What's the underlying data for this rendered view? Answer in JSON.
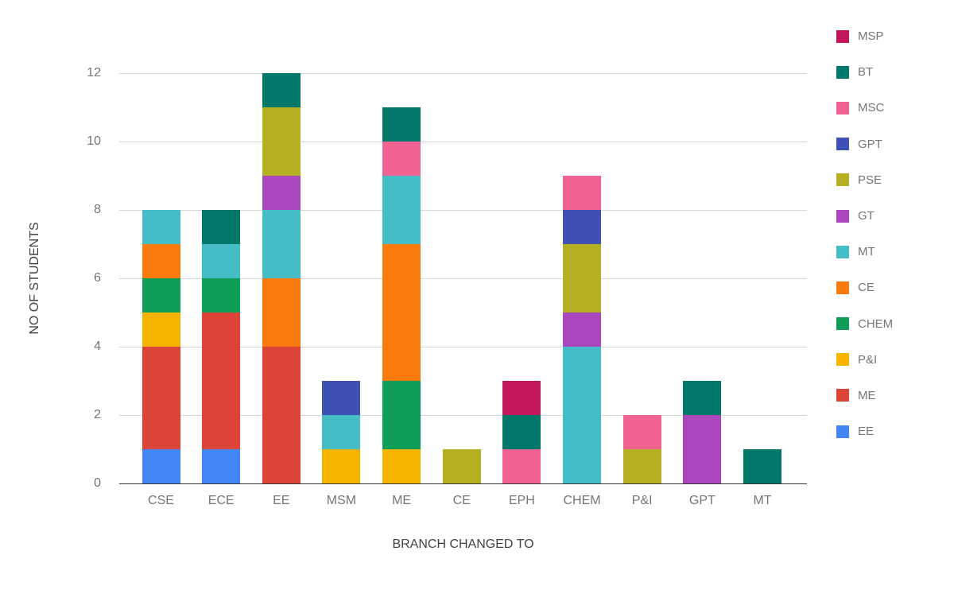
{
  "chart_data": {
    "type": "bar",
    "stacked": true,
    "xlabel": "BRANCH CHANGED TO",
    "ylabel": "NO OF STUDENTS",
    "categories": [
      "CSE",
      "ECE",
      "EE",
      "MSM",
      "ME",
      "CE",
      "EPH",
      "CHEM",
      "P&I",
      "GPT",
      "MT"
    ],
    "series": [
      {
        "name": "EE",
        "color": "#4285F4",
        "values": [
          1,
          1,
          0,
          0,
          0,
          0,
          0,
          0,
          0,
          0,
          0
        ]
      },
      {
        "name": "ME",
        "color": "#DB4437",
        "values": [
          3,
          4,
          4,
          0,
          0,
          0,
          0,
          0,
          0,
          0,
          0
        ]
      },
      {
        "name": "P&I",
        "color": "#F4B400",
        "values": [
          1,
          0,
          0,
          1,
          1,
          0,
          0,
          0,
          0,
          0,
          0
        ]
      },
      {
        "name": "CHEM",
        "color": "#0F9D58",
        "values": [
          1,
          1,
          0,
          0,
          2,
          0,
          0,
          0,
          0,
          0,
          0
        ]
      },
      {
        "name": "CE",
        "color": "#F97B0D",
        "values": [
          1,
          0,
          2,
          0,
          4,
          0,
          0,
          0,
          0,
          0,
          0
        ]
      },
      {
        "name": "MT",
        "color": "#45BDC7",
        "values": [
          1,
          1,
          2,
          1,
          2,
          0,
          0,
          4,
          0,
          0,
          0
        ]
      },
      {
        "name": "GT",
        "color": "#AB47BC",
        "values": [
          0,
          0,
          1,
          0,
          0,
          0,
          0,
          1,
          0,
          2,
          0
        ]
      },
      {
        "name": "PSE",
        "color": "#B5B021",
        "values": [
          0,
          0,
          2,
          0,
          0,
          1,
          0,
          2,
          1,
          0,
          0
        ]
      },
      {
        "name": "GPT",
        "color": "#3F51B5",
        "values": [
          0,
          0,
          0,
          1,
          0,
          0,
          0,
          1,
          0,
          0,
          0
        ]
      },
      {
        "name": "MSC",
        "color": "#F06292",
        "values": [
          0,
          0,
          0,
          0,
          1,
          0,
          1,
          1,
          1,
          0,
          0
        ]
      },
      {
        "name": "BT",
        "color": "#00796B",
        "values": [
          0,
          1,
          1,
          0,
          1,
          0,
          1,
          0,
          0,
          1,
          1
        ]
      },
      {
        "name": "MSP",
        "color": "#C2185B",
        "values": [
          0,
          0,
          0,
          0,
          0,
          0,
          1,
          0,
          0,
          0,
          0
        ]
      }
    ],
    "yticks": [
      0,
      2,
      4,
      6,
      8,
      10,
      12
    ],
    "ylim": [
      0,
      12
    ],
    "grid": true,
    "legend_position": "right",
    "legend_order": [
      "MSP",
      "BT",
      "MSC",
      "GPT",
      "PSE",
      "GT",
      "MT",
      "CE",
      "CHEM",
      "P&I",
      "ME",
      "EE"
    ]
  },
  "colors": {
    "background": "#FFFFFF",
    "gridline": "#D6D6D6",
    "axis_baseline": "#333333",
    "tick_label": "#757575",
    "axis_title": "#424242",
    "legend_label": "#757575"
  }
}
